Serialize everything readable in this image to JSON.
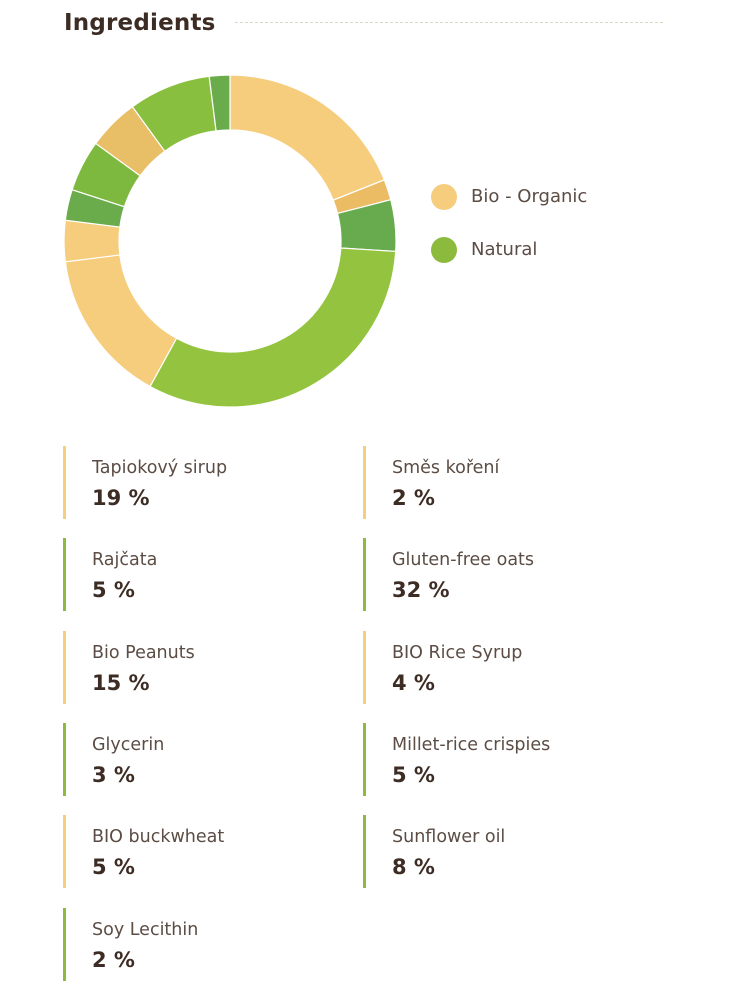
{
  "title": "Ingredients",
  "colors": {
    "bio": "#f5cd7c",
    "natural": "#8cba3d"
  },
  "legend": [
    {
      "label": "Bio - Organic",
      "color": "#f5cd7c"
    },
    {
      "label": "Natural",
      "color": "#8cba3d"
    }
  ],
  "chart_data": {
    "type": "pie",
    "variant": "donut",
    "categories": [
      "Tapiokový sirup",
      "Směs koření",
      "Rajčata",
      "Gluten-free oats",
      "Bio Peanuts",
      "BIO Rice Syrup",
      "Glycerin",
      "Millet-rice crispies",
      "BIO buckwheat",
      "Sunflower oil",
      "Soy Lecithin"
    ],
    "values": [
      19,
      2,
      5,
      32,
      15,
      4,
      3,
      5,
      5,
      8,
      2
    ],
    "legend_position": "right"
  },
  "ingredients": [
    {
      "name": "Tapiokový sirup",
      "percent": "19 %",
      "type": "bio"
    },
    {
      "name": "Směs koření",
      "percent": "2 %",
      "type": "bio"
    },
    {
      "name": "Rajčata",
      "percent": "5 %",
      "type": "natural"
    },
    {
      "name": "Gluten-free oats",
      "percent": "32 %",
      "type": "natural"
    },
    {
      "name": "Bio Peanuts",
      "percent": "15 %",
      "type": "bio"
    },
    {
      "name": "BIO Rice Syrup",
      "percent": "4 %",
      "type": "bio"
    },
    {
      "name": "Glycerin",
      "percent": "3 %",
      "type": "natural"
    },
    {
      "name": "Millet-rice crispies",
      "percent": "5 %",
      "type": "natural"
    },
    {
      "name": "BIO buckwheat",
      "percent": "5 %",
      "type": "bio"
    },
    {
      "name": "Sunflower oil",
      "percent": "8 %",
      "type": "natural"
    },
    {
      "name": "Soy Lecithin",
      "percent": "2 %",
      "type": "natural"
    }
  ]
}
